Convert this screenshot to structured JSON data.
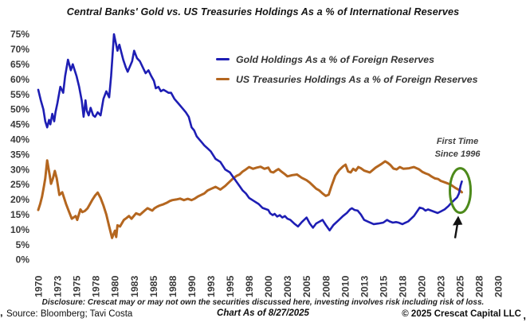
{
  "annotation": {
    "line1": "First Time",
    "line2": "Since 1996",
    "circle_color": "#4d8a1b",
    "arrow_color": "#121212"
  },
  "footer": {
    "disclosure": "Disclosure: Crescat may or may not own the securities discussed here, investing involves risk including risk of loss.",
    "source": "Source: Bloomberg; Tavi Costa",
    "chart_as_of": "Chart As of 8/27/2025",
    "copyright": "© 2025 Crescat Capital LLC"
  },
  "artifacts": {
    "left_mark": "‚",
    "right_mark": ","
  },
  "chart_data": {
    "type": "line",
    "title": "Central Banks' Gold vs. US Treasuries Holdings As a % of International Reserves",
    "xlabel": "",
    "ylabel": "",
    "grid": false,
    "legend_position": "top-center",
    "ylim": [
      0,
      75
    ],
    "y_ticks": [
      75,
      70,
      65,
      60,
      55,
      50,
      45,
      40,
      35,
      30,
      25,
      20,
      15,
      10,
      5,
      0
    ],
    "y_tick_suffix": "%",
    "x_ticks": [
      1970,
      1973,
      1975,
      1978,
      1980,
      1983,
      1985,
      1988,
      1990,
      1993,
      1995,
      1998,
      2000,
      2003,
      2005,
      2008,
      2010,
      2013,
      2015,
      2018,
      2020,
      2023,
      2025,
      2028,
      2030
    ],
    "annotation_note": "green ellipse and up arrow at 2025 crossover where gold rises above US treasuries (~23-26%), first time since 1996",
    "series": [
      {
        "id": "us-treasuries",
        "name": "US Treasuries Holdings As a % of Foreign Reserves",
        "color": "#b4661f",
        "width": 3,
        "points": [
          [
            1970.0,
            16.5
          ],
          [
            1970.3,
            18.5
          ],
          [
            1970.6,
            21
          ],
          [
            1970.9,
            24.5
          ],
          [
            1971.1,
            27
          ],
          [
            1971.4,
            33
          ],
          [
            1971.6,
            30.5
          ],
          [
            1971.8,
            28
          ],
          [
            1972.0,
            25.2
          ],
          [
            1972.3,
            27
          ],
          [
            1972.6,
            29.5
          ],
          [
            1972.9,
            27
          ],
          [
            1973.2,
            21.5
          ],
          [
            1973.5,
            22.4
          ],
          [
            1973.9,
            18.5
          ],
          [
            1974.2,
            16
          ],
          [
            1974.5,
            13.6
          ],
          [
            1974.9,
            14.5
          ],
          [
            1975.1,
            13.2
          ],
          [
            1975.6,
            16.7
          ],
          [
            1975.9,
            15.8
          ],
          [
            1976.3,
            16.2
          ],
          [
            1976.7,
            17
          ],
          [
            1977.1,
            18.5
          ],
          [
            1977.5,
            20
          ],
          [
            1977.9,
            21.3
          ],
          [
            1978.2,
            22.3
          ],
          [
            1978.5,
            20.5
          ],
          [
            1978.8,
            18
          ],
          [
            1979.1,
            15
          ],
          [
            1979.4,
            11
          ],
          [
            1979.7,
            7.2
          ],
          [
            1980.0,
            9.6
          ],
          [
            1980.2,
            7.5
          ],
          [
            1980.4,
            11.4
          ],
          [
            1980.8,
            11
          ],
          [
            1981.4,
            13.2
          ],
          [
            1981.8,
            13.8
          ],
          [
            1982.2,
            14.5
          ],
          [
            1982.6,
            13.6
          ],
          [
            1983.2,
            15.4
          ],
          [
            1983.6,
            14.9
          ],
          [
            1984.1,
            16.3
          ],
          [
            1984.4,
            17.1
          ],
          [
            1984.9,
            16.3
          ],
          [
            1985.2,
            17.1
          ],
          [
            1985.6,
            17.6
          ],
          [
            1986.0,
            18
          ],
          [
            1986.6,
            18.4
          ],
          [
            1987.2,
            19
          ],
          [
            1987.6,
            19.5
          ],
          [
            1988.0,
            19.8
          ],
          [
            1988.4,
            20
          ],
          [
            1988.8,
            20.3
          ],
          [
            1989.2,
            19.8
          ],
          [
            1989.6,
            20.2
          ],
          [
            1990.0,
            19.8
          ],
          [
            1990.5,
            20.3
          ],
          [
            1991.0,
            21
          ],
          [
            1991.5,
            21.5
          ],
          [
            1992.0,
            22
          ],
          [
            1992.5,
            23
          ],
          [
            1993.0,
            23.5
          ],
          [
            1993.5,
            24.2
          ],
          [
            1994.0,
            23.3
          ],
          [
            1994.5,
            24.5
          ],
          [
            1995.0,
            26
          ],
          [
            1995.5,
            27
          ],
          [
            1996.0,
            27.8
          ],
          [
            1996.5,
            28.3
          ],
          [
            1997.0,
            29.3
          ],
          [
            1997.5,
            30
          ],
          [
            1998.0,
            30.8
          ],
          [
            1998.4,
            30.2
          ],
          [
            1998.8,
            30.6
          ],
          [
            1999.2,
            30.9
          ],
          [
            1999.6,
            30.2
          ],
          [
            2000.0,
            30.6
          ],
          [
            2000.4,
            29.2
          ],
          [
            2000.8,
            29
          ],
          [
            2001.2,
            29.6
          ],
          [
            2001.6,
            30.1
          ],
          [
            2002.0,
            29.4
          ],
          [
            2002.5,
            28.6
          ],
          [
            2003.0,
            27.7
          ],
          [
            2003.5,
            28.1
          ],
          [
            2004.0,
            28.3
          ],
          [
            2004.5,
            27.2
          ],
          [
            2005.0,
            26.4
          ],
          [
            2005.5,
            25.6
          ],
          [
            2006.0,
            24.6
          ],
          [
            2006.5,
            23.6
          ],
          [
            2007.0,
            23
          ],
          [
            2007.5,
            22
          ],
          [
            2008.0,
            21.2
          ],
          [
            2008.3,
            21.6
          ],
          [
            2008.6,
            24.5
          ],
          [
            2009.0,
            28
          ],
          [
            2009.4,
            29.8
          ],
          [
            2009.8,
            31
          ],
          [
            2010.1,
            31.6
          ],
          [
            2010.5,
            29.3
          ],
          [
            2010.9,
            29
          ],
          [
            2011.3,
            30.2
          ],
          [
            2011.7,
            29.6
          ],
          [
            2012.1,
            30.8
          ],
          [
            2012.5,
            30.4
          ],
          [
            2013.0,
            29.6
          ],
          [
            2013.6,
            29
          ],
          [
            2014.2,
            30.6
          ],
          [
            2014.8,
            31.8
          ],
          [
            2015.3,
            32.7
          ],
          [
            2015.7,
            32.2
          ],
          [
            2016.1,
            31.5
          ],
          [
            2016.6,
            30.3
          ],
          [
            2017.1,
            30
          ],
          [
            2017.6,
            30.8
          ],
          [
            2018.1,
            30.2
          ],
          [
            2018.7,
            30.4
          ],
          [
            2019.2,
            30.8
          ],
          [
            2019.7,
            30.1
          ],
          [
            2020.1,
            29.2
          ],
          [
            2020.6,
            28.7
          ],
          [
            2021.1,
            28.3
          ],
          [
            2021.6,
            27.6
          ],
          [
            2022.1,
            27
          ],
          [
            2022.6,
            26.8
          ],
          [
            2023.0,
            26.2
          ],
          [
            2023.5,
            25.6
          ],
          [
            2024.0,
            25
          ],
          [
            2024.5,
            23.9
          ],
          [
            2025.0,
            23
          ],
          [
            2025.3,
            22.4
          ]
        ]
      },
      {
        "id": "gold",
        "name": "Gold Holdings As a % of Foreign Reserves",
        "color": "#1e1eb4",
        "width": 2.6,
        "points": [
          [
            1970.0,
            56.5
          ],
          [
            1970.4,
            53
          ],
          [
            1970.8,
            50
          ],
          [
            1971.1,
            46
          ],
          [
            1971.4,
            44
          ],
          [
            1971.7,
            46.5
          ],
          [
            1971.9,
            45
          ],
          [
            1972.2,
            48.5
          ],
          [
            1972.5,
            46
          ],
          [
            1972.7,
            49
          ],
          [
            1973.0,
            52
          ],
          [
            1973.3,
            57.5
          ],
          [
            1973.6,
            55.5
          ],
          [
            1973.8,
            61
          ],
          [
            1974.1,
            66.5
          ],
          [
            1974.4,
            63
          ],
          [
            1974.6,
            65
          ],
          [
            1975.0,
            61
          ],
          [
            1975.4,
            57.5
          ],
          [
            1975.8,
            53
          ],
          [
            1976.1,
            47.5
          ],
          [
            1976.4,
            53
          ],
          [
            1976.6,
            49.5
          ],
          [
            1976.9,
            48
          ],
          [
            1977.2,
            50.5
          ],
          [
            1977.6,
            48
          ],
          [
            1977.9,
            47.5
          ],
          [
            1978.2,
            49
          ],
          [
            1978.5,
            48
          ],
          [
            1978.8,
            53.5
          ],
          [
            1979.1,
            56
          ],
          [
            1979.4,
            54
          ],
          [
            1979.6,
            61
          ],
          [
            1979.9,
            75
          ],
          [
            1980.1,
            72.5
          ],
          [
            1980.4,
            69.5
          ],
          [
            1980.7,
            71.5
          ],
          [
            1981.0,
            69
          ],
          [
            1981.3,
            66.5
          ],
          [
            1981.7,
            64
          ],
          [
            1982.0,
            62.5
          ],
          [
            1982.4,
            64.5
          ],
          [
            1982.7,
            66
          ],
          [
            1983.0,
            69.5
          ],
          [
            1983.3,
            67
          ],
          [
            1983.6,
            66
          ],
          [
            1983.9,
            64
          ],
          [
            1984.2,
            62
          ],
          [
            1984.5,
            63
          ],
          [
            1984.8,
            61
          ],
          [
            1985.1,
            59.5
          ],
          [
            1985.4,
            57
          ],
          [
            1985.8,
            57.5
          ],
          [
            1986.2,
            56
          ],
          [
            1986.6,
            56.5
          ],
          [
            1987.0,
            56
          ],
          [
            1987.4,
            55.5
          ],
          [
            1987.8,
            55.5
          ],
          [
            1988.2,
            53.5
          ],
          [
            1988.6,
            52
          ],
          [
            1989.0,
            50.5
          ],
          [
            1989.4,
            49
          ],
          [
            1989.7,
            47.5
          ],
          [
            1990.0,
            44
          ],
          [
            1990.4,
            43
          ],
          [
            1990.8,
            41
          ],
          [
            1991.2,
            40
          ],
          [
            1991.6,
            39
          ],
          [
            1992.0,
            38
          ],
          [
            1992.5,
            37
          ],
          [
            1993.0,
            36
          ],
          [
            1993.5,
            33.5
          ],
          [
            1994.0,
            32.5
          ],
          [
            1994.5,
            30
          ],
          [
            1995.0,
            29
          ],
          [
            1995.5,
            27.5
          ],
          [
            1996.0,
            26
          ],
          [
            1996.5,
            24.5
          ],
          [
            1997.0,
            23
          ],
          [
            1997.5,
            22
          ],
          [
            1998.0,
            20.5
          ],
          [
            1998.5,
            19.5
          ],
          [
            1999.0,
            18.5
          ],
          [
            1999.4,
            17.2
          ],
          [
            2000.0,
            16.5
          ],
          [
            2000.3,
            15.4
          ],
          [
            2000.7,
            14.8
          ],
          [
            2001.0,
            15.2
          ],
          [
            2001.4,
            14.3
          ],
          [
            2001.8,
            14.8
          ],
          [
            2002.2,
            14
          ],
          [
            2002.6,
            14.5
          ],
          [
            2003.0,
            13.6
          ],
          [
            2003.3,
            13.2
          ],
          [
            2003.7,
            12
          ],
          [
            2004.1,
            11
          ],
          [
            2004.5,
            12.5
          ],
          [
            2005.0,
            14
          ],
          [
            2005.5,
            12
          ],
          [
            2006.0,
            10.6
          ],
          [
            2006.5,
            12
          ],
          [
            2007.0,
            12.6
          ],
          [
            2007.5,
            13.2
          ],
          [
            2008.0,
            11.5
          ],
          [
            2008.4,
            9.7
          ],
          [
            2008.8,
            11.5
          ],
          [
            2009.3,
            13
          ],
          [
            2009.8,
            14.5
          ],
          [
            2010.3,
            15.5
          ],
          [
            2010.8,
            16.7
          ],
          [
            2011.1,
            17.1
          ],
          [
            2011.5,
            16.5
          ],
          [
            2012.0,
            16.3
          ],
          [
            2012.5,
            15
          ],
          [
            2013.0,
            13.2
          ],
          [
            2013.5,
            12.5
          ],
          [
            2014.0,
            11.8
          ],
          [
            2014.5,
            12
          ],
          [
            2015.0,
            12.3
          ],
          [
            2015.6,
            13.2
          ],
          [
            2016.0,
            12.7
          ],
          [
            2016.5,
            12.3
          ],
          [
            2017.0,
            12.5
          ],
          [
            2017.4,
            12.3
          ],
          [
            2018.0,
            11.8
          ],
          [
            2018.6,
            12.7
          ],
          [
            2019.2,
            14.5
          ],
          [
            2019.8,
            17.3
          ],
          [
            2020.2,
            17
          ],
          [
            2020.6,
            16.3
          ],
          [
            2021.0,
            16.7
          ],
          [
            2021.5,
            16.3
          ],
          [
            2022.0,
            15.9
          ],
          [
            2022.5,
            15.5
          ],
          [
            2023.0,
            16
          ],
          [
            2023.4,
            16.7
          ],
          [
            2023.8,
            17.8
          ],
          [
            2024.1,
            18.9
          ],
          [
            2024.4,
            19.8
          ],
          [
            2024.7,
            20.7
          ],
          [
            2024.9,
            22
          ],
          [
            2025.1,
            24.6
          ],
          [
            2025.3,
            26
          ]
        ]
      }
    ]
  }
}
